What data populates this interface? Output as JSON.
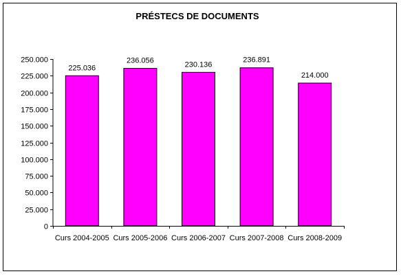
{
  "chart_data": {
    "type": "bar",
    "title": "PRÉSTECS DE DOCUMENTS",
    "xlabel": "",
    "ylabel": "",
    "categories": [
      "Curs 2004-2005",
      "Curs 2005-2006",
      "Curs 2006-2007",
      "Curs 2007-2008",
      "Curs 2008-2009"
    ],
    "values": [
      225036,
      236056,
      230136,
      236891,
      214000
    ],
    "data_labels": [
      "225.036",
      "236.056",
      "230.136",
      "236.891",
      "214.000"
    ],
    "ylim": [
      0,
      250000
    ],
    "yticks": [
      0,
      25000,
      50000,
      75000,
      100000,
      125000,
      150000,
      175000,
      200000,
      225000,
      250000
    ],
    "ytick_labels": [
      "0",
      "25.000",
      "50.000",
      "75.000",
      "100.000",
      "125.000",
      "150.000",
      "175.000",
      "200.000",
      "225.000",
      "250.000"
    ],
    "grid": false,
    "legend": "none",
    "colors": {
      "bar_fill": "#FF00FF",
      "bar_stroke": "#000000",
      "axis": "#000000"
    }
  }
}
